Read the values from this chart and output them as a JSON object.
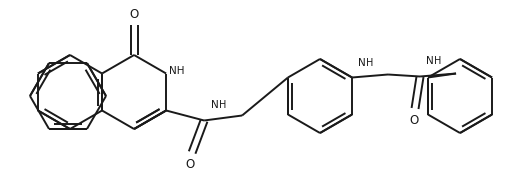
{
  "bg_color": "#ffffff",
  "line_color": "#1a1a1a",
  "line_width": 1.4,
  "font_size": 7.5,
  "figsize": [
    5.26,
    1.92
  ],
  "dpi": 100,
  "xlim": [
    0,
    526
  ],
  "ylim": [
    0,
    192
  ]
}
